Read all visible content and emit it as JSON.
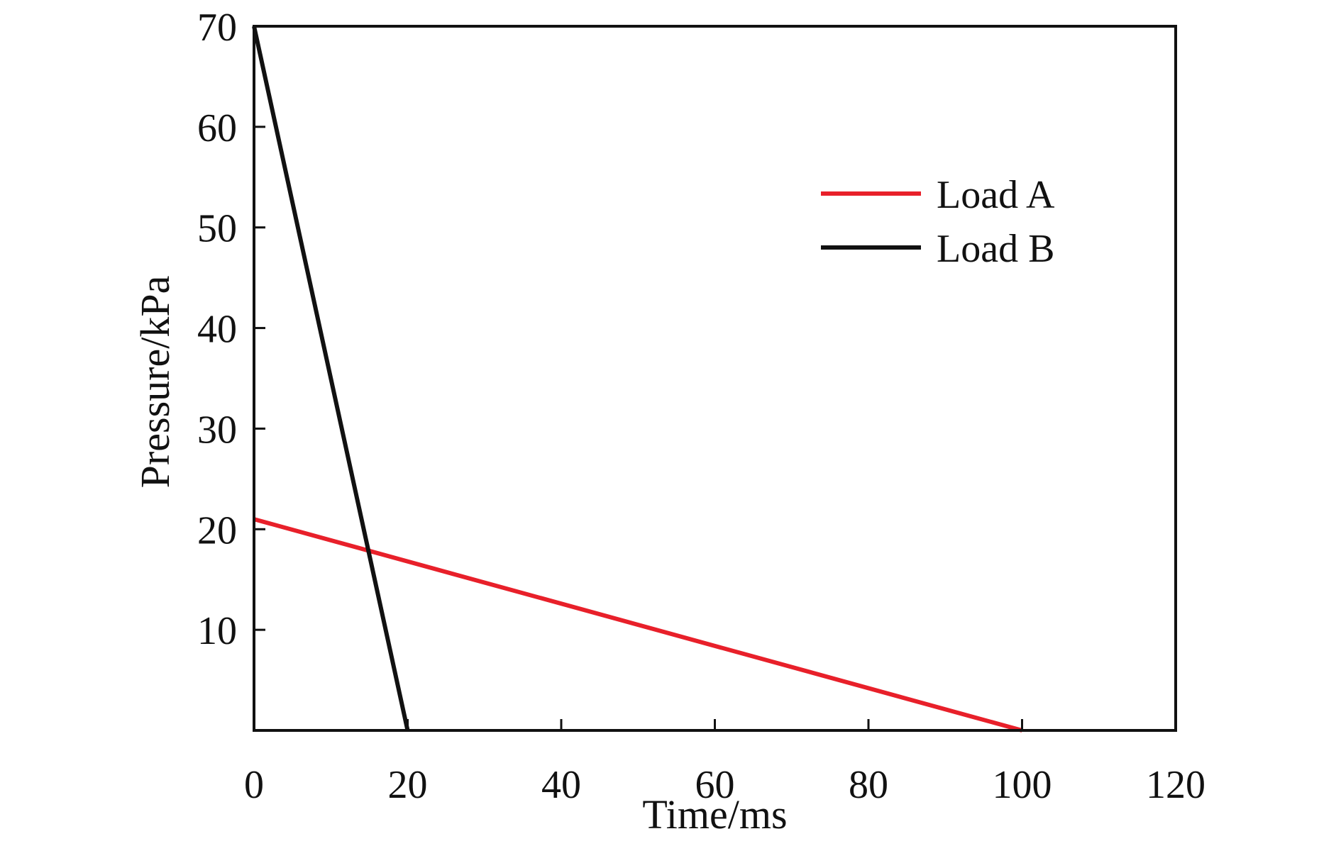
{
  "chart_data": {
    "type": "line",
    "title": "",
    "xlabel": "Time/ms",
    "ylabel": "Pressure/kPa",
    "xlim": [
      0,
      120
    ],
    "ylim": [
      0,
      70
    ],
    "xticks": [
      0,
      20,
      40,
      60,
      80,
      100,
      120
    ],
    "yticks": [
      10,
      20,
      30,
      40,
      50,
      60,
      70
    ],
    "grid": false,
    "legend_position": "top-right",
    "series": [
      {
        "name": "Load A",
        "color": "#e8202a",
        "x": [
          0,
          100
        ],
        "y": [
          21,
          0
        ]
      },
      {
        "name": "Load B",
        "color": "#111111",
        "x": [
          0,
          20
        ],
        "y": [
          70,
          0
        ]
      }
    ]
  }
}
